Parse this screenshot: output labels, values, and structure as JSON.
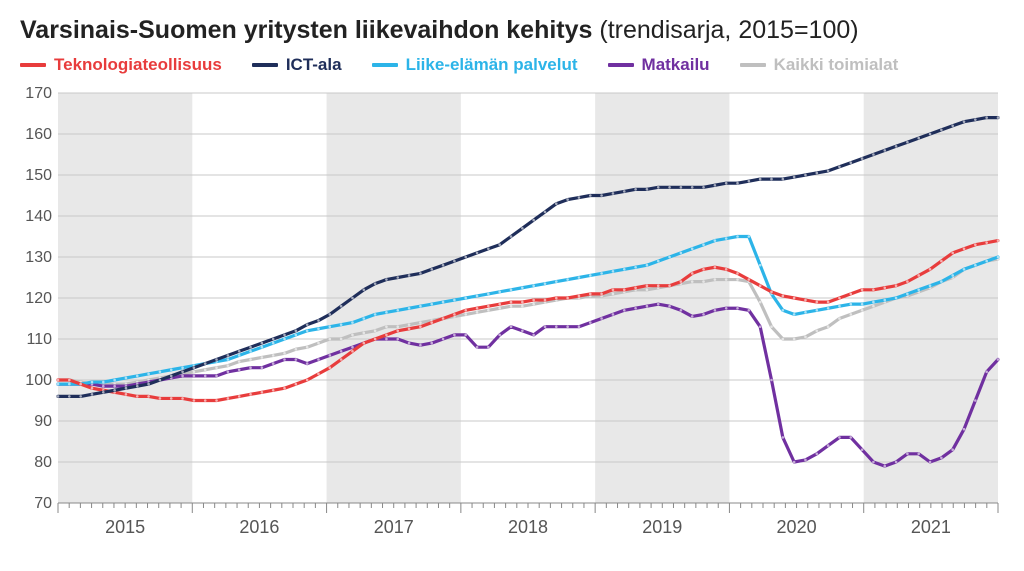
{
  "title_bold": "Varsinais-Suomen yritysten liikevaihdon kehitys",
  "title_light": " (trendisarja, 2015=100)",
  "chart": {
    "type": "line",
    "background_color": "#ffffff",
    "alt_band_color": "#e8e8e8",
    "grid_color": "#c8c8c8",
    "axis_color": "#888888",
    "ylim": [
      70,
      170
    ],
    "ytick_step": 10,
    "yticks": [
      70,
      80,
      90,
      100,
      110,
      120,
      130,
      140,
      150,
      160,
      170
    ],
    "x_years": [
      "2015",
      "2016",
      "2017",
      "2018",
      "2019",
      "2020",
      "2021"
    ],
    "x_count": 84,
    "line_width": 3.2,
    "marker_radius": 1.3,
    "marker_color": "#ffffff",
    "marker_opacity": 0.6,
    "label_fontsize": 16,
    "xlabel_fontsize": 18,
    "series": [
      {
        "id": "kaikki",
        "label": "Kaikki toimialat",
        "color": "#bfbfbf",
        "markers": true,
        "values": [
          100,
          100,
          99.5,
          99,
          99,
          99,
          99,
          99.5,
          100,
          100.5,
          101,
          101.5,
          102,
          102.5,
          103,
          103.5,
          104.5,
          105,
          105.5,
          106,
          106.5,
          107.5,
          108,
          109,
          110,
          110,
          111,
          111.5,
          112,
          113,
          113,
          113.5,
          114,
          114.5,
          115,
          115.5,
          116,
          116.5,
          117,
          117.5,
          118,
          118,
          118.5,
          119,
          119.5,
          120,
          120,
          120.5,
          120.5,
          121,
          121.5,
          122,
          122,
          122.5,
          123,
          123.5,
          124,
          124,
          124.5,
          124.5,
          124.5,
          124,
          119,
          113,
          110,
          110,
          110.5,
          112,
          113,
          115,
          116,
          117,
          118,
          119,
          120,
          120.5,
          121.5,
          122.5,
          124,
          125,
          127,
          128,
          129,
          129.5
        ]
      },
      {
        "id": "matkailu",
        "label": "Matkailu",
        "color": "#7030a0",
        "markers": true,
        "values": [
          99,
          99,
          99,
          99,
          98.5,
          98.5,
          98.5,
          99,
          99.5,
          100,
          100.5,
          101,
          101,
          101,
          101,
          102,
          102.5,
          103,
          103,
          104,
          105,
          105,
          104,
          105,
          106,
          107,
          108,
          109,
          110,
          110,
          110,
          109,
          108.5,
          109,
          110,
          111,
          111,
          108,
          108,
          111,
          113,
          112,
          111,
          113,
          113,
          113,
          113,
          114,
          115,
          116,
          117,
          117.5,
          118,
          118.5,
          118,
          117,
          115.5,
          116,
          117,
          117.5,
          117.5,
          117,
          113,
          100,
          86,
          80,
          80.5,
          82,
          84,
          86,
          86,
          83,
          80,
          79,
          80,
          82,
          82,
          80,
          81,
          83,
          88,
          95,
          102,
          105
        ]
      },
      {
        "id": "liike",
        "label": "Liike-elämän palvelut",
        "color": "#2cb4e8",
        "markers": true,
        "values": [
          99,
          99,
          99,
          99.5,
          99.5,
          100,
          100.5,
          101,
          101.5,
          102,
          102.5,
          103,
          103.5,
          104,
          104.5,
          105,
          106,
          107,
          108,
          109,
          110,
          111,
          112,
          112.5,
          113,
          113.5,
          114,
          115,
          116,
          116.5,
          117,
          117.5,
          118,
          118.5,
          119,
          119.5,
          120,
          120.5,
          121,
          121.5,
          122,
          122.5,
          123,
          123.5,
          124,
          124.5,
          125,
          125.5,
          126,
          126.5,
          127,
          127.5,
          128,
          129,
          130,
          131,
          132,
          133,
          134,
          134.5,
          135,
          135,
          128,
          121,
          117,
          116,
          116.5,
          117,
          117.5,
          118,
          118.5,
          118.5,
          119,
          119.5,
          120,
          121,
          122,
          123,
          124,
          125.5,
          127,
          128,
          129,
          130
        ]
      },
      {
        "id": "tekno",
        "label": "Teknologiateollisuus",
        "color": "#e83c3c",
        "markers": true,
        "values": [
          100,
          100,
          99,
          98,
          97.5,
          97,
          96.5,
          96,
          96,
          95.5,
          95.5,
          95.5,
          95,
          95,
          95,
          95.5,
          96,
          96.5,
          97,
          97.5,
          98,
          99,
          100,
          101.5,
          103,
          105,
          107,
          109,
          110,
          111,
          112,
          112.5,
          113,
          114,
          115,
          116,
          117,
          117.5,
          118,
          118.5,
          119,
          119,
          119.5,
          119.5,
          120,
          120,
          120.5,
          121,
          121,
          122,
          122,
          122.5,
          123,
          123,
          123,
          124,
          126,
          127,
          127.5,
          127,
          126,
          124.5,
          123,
          121.5,
          120.5,
          120,
          119.5,
          119,
          119,
          120,
          121,
          122,
          122,
          122.5,
          123,
          124,
          125.5,
          127,
          129,
          131,
          132,
          133,
          133.5,
          134
        ]
      },
      {
        "id": "ict",
        "label": "ICT-ala",
        "color": "#1f2e5a",
        "markers": true,
        "values": [
          96,
          96,
          96,
          96.5,
          97,
          97.5,
          98,
          98.5,
          99,
          100,
          101,
          102,
          103,
          104,
          105,
          106,
          107,
          108,
          109,
          110,
          111,
          112,
          113.5,
          114.5,
          116,
          118,
          120,
          122,
          123.5,
          124.5,
          125,
          125.5,
          126,
          127,
          128,
          129,
          130,
          131,
          132,
          133,
          135,
          137,
          139,
          141,
          143,
          144,
          144.5,
          145,
          145,
          145.5,
          146,
          146.5,
          146.5,
          147,
          147,
          147,
          147,
          147,
          147.5,
          148,
          148,
          148.5,
          149,
          149,
          149,
          149.5,
          150,
          150.5,
          151,
          152,
          153,
          154,
          155,
          156,
          157,
          158,
          159,
          160,
          161,
          162,
          163,
          163.5,
          164,
          164
        ]
      }
    ],
    "legend_order": [
      "tekno",
      "ict",
      "liike",
      "matkailu",
      "kaikki"
    ]
  }
}
